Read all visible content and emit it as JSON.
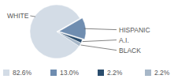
{
  "chart_data": {
    "type": "pie",
    "categories": [
      "WHITE",
      "HISPANIC",
      "A.I.",
      "BLACK"
    ],
    "values": [
      82.6,
      13.0,
      2.2,
      2.2
    ],
    "value_labels": [
      "82.6%",
      "13.0%",
      "2.2%",
      "2.2%"
    ],
    "colors": [
      "#d3dce6",
      "#6f8db0",
      "#2b4d6d",
      "#a7b7c8"
    ],
    "legend": "bottom"
  }
}
